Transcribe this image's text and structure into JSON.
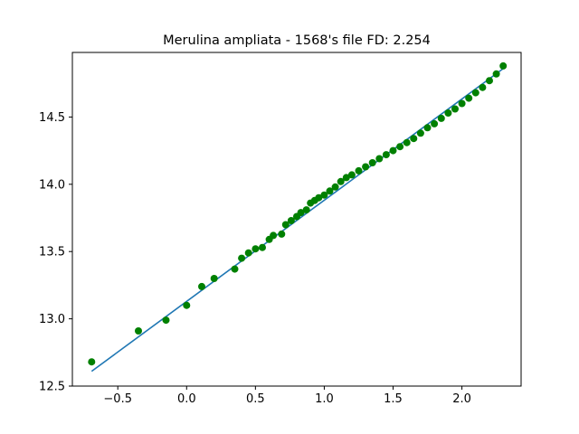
{
  "chart_data": {
    "type": "scatter",
    "title": "Merulina ampliata - 1568's file FD: 2.254",
    "xlabel": "",
    "ylabel": "",
    "xlim": [
      -0.83,
      2.43
    ],
    "ylim": [
      12.5,
      14.98
    ],
    "xticks": [
      -0.5,
      0.0,
      0.5,
      1.0,
      1.5,
      2.0
    ],
    "xtick_labels": [
      "−0.5",
      "0.0",
      "0.5",
      "1.0",
      "1.5",
      "2.0"
    ],
    "yticks": [
      12.5,
      13.0,
      13.5,
      14.0,
      14.5
    ],
    "ytick_labels": [
      "12.5",
      "13.0",
      "13.5",
      "14.0",
      "14.5"
    ],
    "grid": false,
    "legend": "none",
    "series": [
      {
        "kind": "line",
        "color": "#1f77b4",
        "x": [
          -0.69,
          2.3
        ],
        "y": [
          12.61,
          14.86
        ]
      },
      {
        "kind": "scatter",
        "color": "#008000",
        "x": [
          -0.69,
          -0.35,
          -0.15,
          0.0,
          0.11,
          0.2,
          0.35,
          0.4,
          0.45,
          0.5,
          0.55,
          0.6,
          0.63,
          0.69,
          0.72,
          0.76,
          0.8,
          0.83,
          0.87,
          0.9,
          0.93,
          0.96,
          1.0,
          1.04,
          1.08,
          1.12,
          1.16,
          1.2,
          1.25,
          1.3,
          1.35,
          1.4,
          1.45,
          1.5,
          1.55,
          1.6,
          1.65,
          1.7,
          1.75,
          1.8,
          1.85,
          1.9,
          1.95,
          2.0,
          2.05,
          2.1,
          2.15,
          2.2,
          2.25,
          2.3
        ],
        "y": [
          12.68,
          12.91,
          12.99,
          13.1,
          13.24,
          13.3,
          13.37,
          13.45,
          13.49,
          13.52,
          13.53,
          13.59,
          13.62,
          13.63,
          13.7,
          13.73,
          13.76,
          13.79,
          13.81,
          13.86,
          13.88,
          13.9,
          13.92,
          13.95,
          13.98,
          14.02,
          14.05,
          14.07,
          14.1,
          14.13,
          14.16,
          14.19,
          14.22,
          14.25,
          14.28,
          14.31,
          14.34,
          14.38,
          14.42,
          14.45,
          14.49,
          14.53,
          14.56,
          14.6,
          14.64,
          14.68,
          14.72,
          14.77,
          14.82,
          14.88
        ]
      }
    ]
  }
}
